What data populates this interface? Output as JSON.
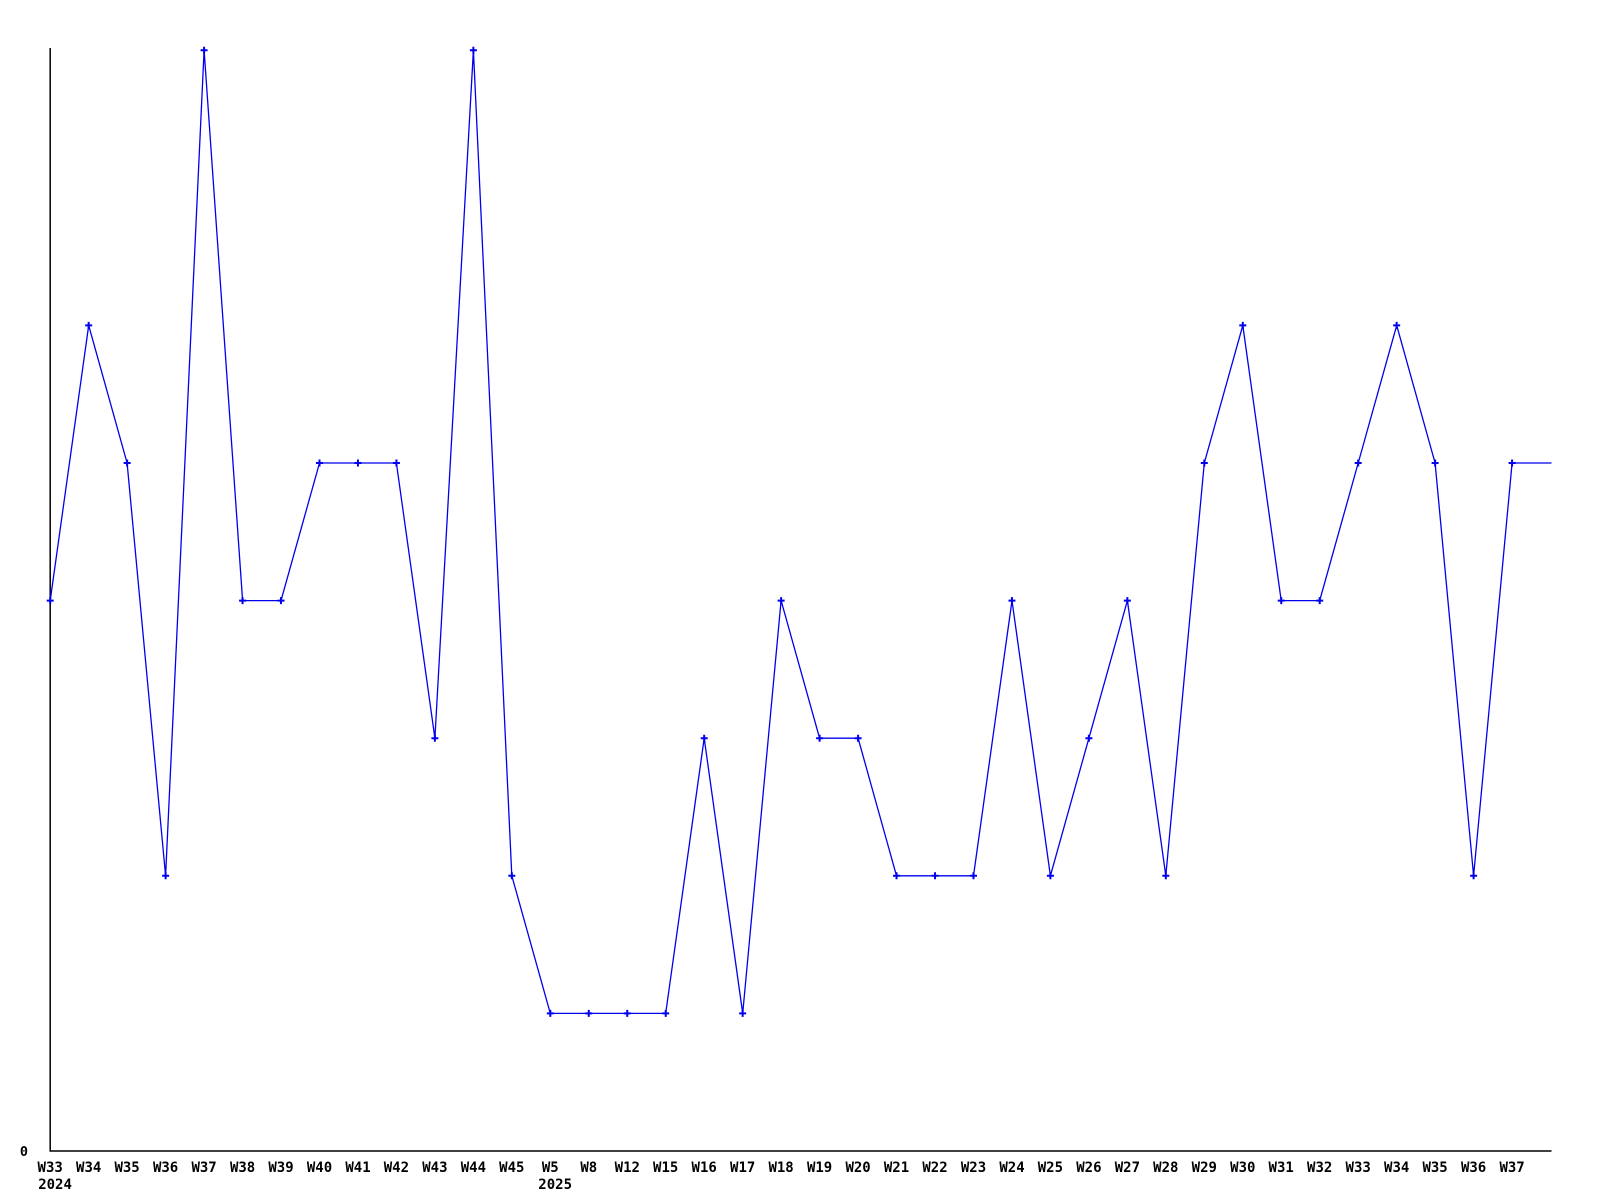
{
  "chart_data": {
    "type": "line",
    "title": "",
    "xlabel": "",
    "ylabel": "",
    "categories": [
      "W33",
      "W34",
      "W35",
      "W36",
      "W37",
      "W38",
      "W39",
      "W40",
      "W41",
      "W42",
      "W43",
      "W44",
      "W45",
      "W5",
      "W8",
      "W12",
      "W15",
      "W16",
      "W17",
      "W18",
      "W19",
      "W20",
      "W21",
      "W22",
      "W23",
      "W24",
      "W25",
      "W26",
      "W27",
      "W28",
      "W29",
      "W30",
      "W31",
      "W32",
      "W33",
      "W34",
      "W35",
      "W36",
      "W37"
    ],
    "values": [
      4,
      6,
      5,
      2,
      8,
      4,
      4,
      5,
      5,
      5,
      3,
      8,
      2,
      1,
      1,
      1,
      1,
      3,
      1,
      4,
      3,
      3,
      2,
      2,
      2,
      4,
      2,
      3,
      4,
      2,
      5,
      6,
      4,
      4,
      5,
      6,
      5,
      2,
      5
    ],
    "year_labels": [
      {
        "index": 0,
        "label": "2024"
      },
      {
        "index": 13,
        "label": "2025"
      }
    ],
    "ylim": [
      0,
      8
    ],
    "y_tick_labels": [
      "0"
    ],
    "grid": false,
    "legend": false,
    "line_color": "#0000ee",
    "marker": "plus",
    "marker_color": "#0000ee",
    "axis_color": "#000000",
    "line_extends_past_last_point": true
  }
}
